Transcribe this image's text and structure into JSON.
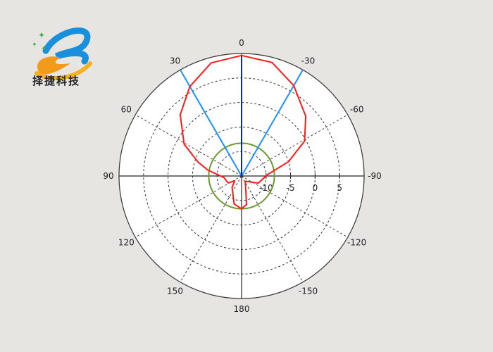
{
  "logo": {
    "text": "择捷科技"
  },
  "chart_data": {
    "type": "polar-line",
    "theta_direction": "counterclockwise",
    "theta_zero": "top",
    "angle_ticks": [
      0,
      30,
      60,
      90,
      120,
      150,
      180,
      -150,
      -120,
      -90,
      -60,
      -30
    ],
    "radial_ticks": [
      -10,
      -5,
      0,
      5
    ],
    "rlim": [
      -15,
      10
    ],
    "grid": true,
    "series": [
      {
        "color": "#ff1a1a",
        "points": [
          [
            0,
            9.6
          ],
          [
            15,
            8.9
          ],
          [
            30,
            6.1
          ],
          [
            45,
            2.7
          ],
          [
            61,
            -1.6
          ],
          [
            72,
            -5.6
          ],
          [
            80,
            -8.0
          ],
          [
            95,
            -11.4
          ],
          [
            117,
            -11.9
          ],
          [
            125,
            -13.3
          ],
          [
            140,
            -12.0
          ],
          [
            165,
            -9.1
          ],
          [
            180,
            -8.3
          ],
          [
            -170,
            -9.1
          ],
          [
            -145,
            -13.7
          ],
          [
            -113,
            -11.3
          ],
          [
            -87,
            -9.7
          ],
          [
            -73,
            -5.0
          ],
          [
            -61,
            -0.3
          ],
          [
            -47,
            2.9
          ],
          [
            -30,
            6.3
          ],
          [
            -15,
            9.0
          ],
          [
            0,
            9.6
          ]
        ]
      }
    ],
    "reference_circle": {
      "color": "#6b9a2e",
      "value": -8.3
    },
    "beam_lines": [
      {
        "angle": 30,
        "color": "#1e8fff"
      },
      {
        "angle": -30,
        "color": "#1e8fff"
      },
      {
        "angle": 0,
        "color": "#0a1fdc"
      }
    ]
  }
}
